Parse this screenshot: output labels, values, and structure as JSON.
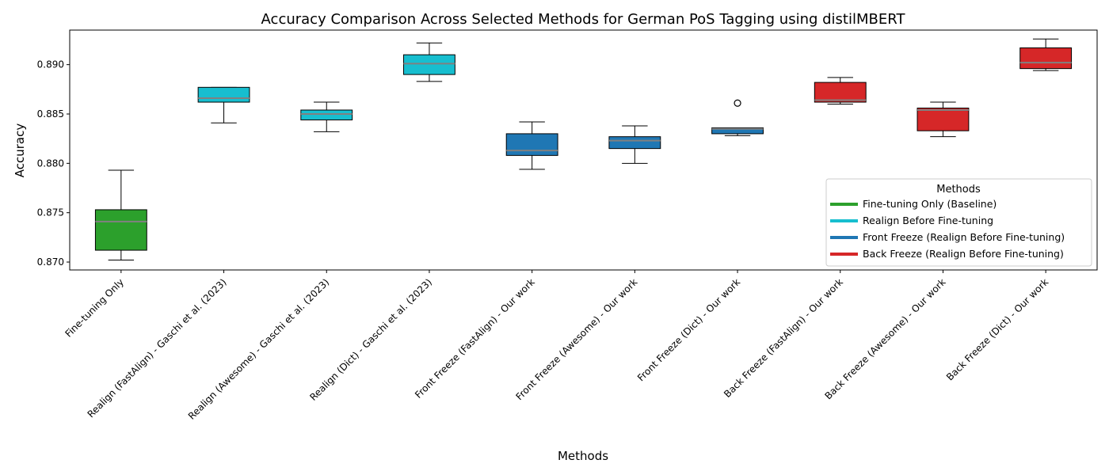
{
  "chart_data": {
    "type": "box",
    "title": "Accuracy Comparison Across Selected Methods for German PoS Tagging using distilMBERT",
    "xlabel": "Methods",
    "ylabel": "Accuracy",
    "ylim": [
      0.8692,
      0.8935
    ],
    "yticks": [
      0.87,
      0.875,
      0.88,
      0.885,
      0.89
    ],
    "ytick_labels": [
      "0.870",
      "0.875",
      "0.880",
      "0.885",
      "0.890"
    ],
    "grid": false,
    "legend": {
      "title": "Methods",
      "placement": "lower-right",
      "entries": [
        {
          "label": "Fine-tuning Only (Baseline)",
          "color": "#2ca02c"
        },
        {
          "label": "Realign Before Fine-tuning",
          "color": "#17becf"
        },
        {
          "label": "Front Freeze (Realign Before Fine-tuning)",
          "color": "#1f77b4"
        },
        {
          "label": "Back Freeze (Realign Before Fine-tuning)",
          "color": "#d62728"
        }
      ]
    },
    "median_color": "#808080",
    "boxes": [
      {
        "label": "Fine-tuning Only",
        "group": 0,
        "whislo": 0.8702,
        "q1": 0.8712,
        "med": 0.8741,
        "q3": 0.8753,
        "whishi": 0.8793,
        "fliers": []
      },
      {
        "label": "Realign (FastAlign) - Gaschi et al. (2023)",
        "group": 1,
        "whislo": 0.8841,
        "q1": 0.8862,
        "med": 0.8866,
        "q3": 0.8877,
        "whishi": 0.8877,
        "fliers": []
      },
      {
        "label": "Realign (Awesome) - Gaschi et al. (2023)",
        "group": 1,
        "whislo": 0.8832,
        "q1": 0.8844,
        "med": 0.885,
        "q3": 0.8854,
        "whishi": 0.8862,
        "fliers": []
      },
      {
        "label": "Realign (Dict) - Gaschi et al. (2023)",
        "group": 1,
        "whislo": 0.8883,
        "q1": 0.889,
        "med": 0.8901,
        "q3": 0.891,
        "whishi": 0.8922,
        "fliers": []
      },
      {
        "label": "Front Freeze (FastAlign) - Our work",
        "group": 2,
        "whislo": 0.8794,
        "q1": 0.8808,
        "med": 0.8813,
        "q3": 0.883,
        "whishi": 0.8842,
        "fliers": []
      },
      {
        "label": "Front Freeze (Awesome) - Our work",
        "group": 2,
        "whislo": 0.88,
        "q1": 0.8815,
        "med": 0.8823,
        "q3": 0.8827,
        "whishi": 0.8838,
        "fliers": []
      },
      {
        "label": "Front Freeze (Dict) - Our work",
        "group": 2,
        "whislo": 0.8828,
        "q1": 0.883,
        "med": 0.8835,
        "q3": 0.8836,
        "whishi": 0.8836,
        "fliers": [
          0.8861
        ]
      },
      {
        "label": "Back Freeze (FastAlign) - Our work",
        "group": 3,
        "whislo": 0.886,
        "q1": 0.8862,
        "med": 0.8864,
        "q3": 0.8882,
        "whishi": 0.8887,
        "fliers": []
      },
      {
        "label": "Back Freeze (Awesome) - Our work",
        "group": 3,
        "whislo": 0.8827,
        "q1": 0.8833,
        "med": 0.8854,
        "q3": 0.8856,
        "whishi": 0.8862,
        "fliers": []
      },
      {
        "label": "Back Freeze (Dict) - Our work",
        "group": 3,
        "whislo": 0.8894,
        "q1": 0.8896,
        "med": 0.8902,
        "q3": 0.8917,
        "whishi": 0.8926,
        "fliers": []
      }
    ]
  }
}
